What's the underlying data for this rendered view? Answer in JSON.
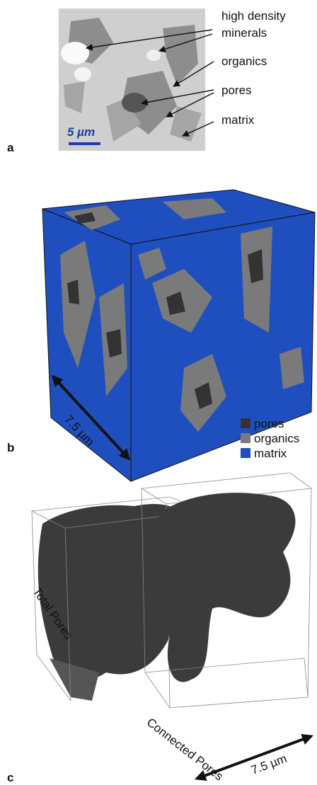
{
  "panel_a": {
    "label": "a",
    "annotations": [
      "high density",
      "minerals",
      "organics",
      "pores",
      "matrix"
    ],
    "scale_bar": "5 µm"
  },
  "panel_b": {
    "label": "b",
    "scale": "7.5 µm",
    "legend": [
      {
        "name": "pores",
        "color": "#333333"
      },
      {
        "name": "organics",
        "color": "#7a7a7a"
      },
      {
        "name": "matrix",
        "color": "#1f4fbf"
      }
    ]
  },
  "panel_c": {
    "label": "c",
    "titles": [
      "Total Pores",
      "Connected Pores"
    ],
    "scale": "7.5 µm"
  }
}
